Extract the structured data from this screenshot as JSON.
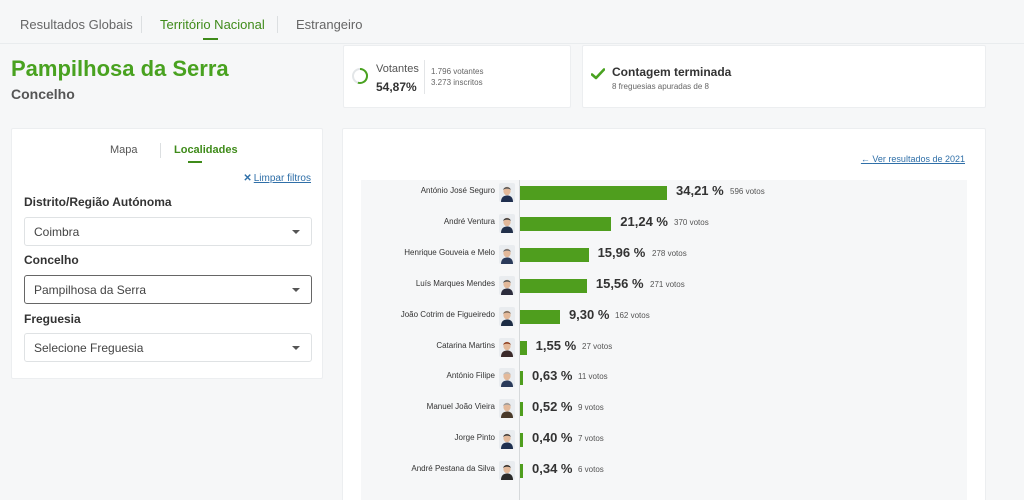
{
  "nav": {
    "tabs": [
      {
        "label": "Resultados Globais"
      },
      {
        "label": "Território Nacional"
      },
      {
        "label": "Estrangeiro"
      }
    ]
  },
  "place": {
    "title": "Pampilhosa da Serra",
    "subtitle": "Concelho"
  },
  "turnout": {
    "label": "Votantes",
    "percent": "54,87%",
    "percent_value": 54.87,
    "voters": "1.796 votantes",
    "registered": "3.273 inscritos"
  },
  "count": {
    "title": "Contagem terminada",
    "subtitle": "8 freguesias apuradas de 8"
  },
  "filters": {
    "tabs": {
      "map": "Mapa",
      "places": "Localidades"
    },
    "clear_label": "Limpar filtros",
    "district_label": "Distrito/Região Autónoma",
    "district_value": "Coimbra",
    "municipality_label": "Concelho",
    "municipality_value": "Pampilhosa da Serra",
    "parish_label": "Freguesia",
    "parish_value": "Selecione Freguesia"
  },
  "results": {
    "back_link": "Ver resultados de 2021"
  },
  "colors": {
    "brand_green": "#49a220",
    "bar_green": "#4f9e1e",
    "link_blue": "#2f6fa8"
  },
  "chart_data": {
    "type": "bar",
    "orientation": "horizontal",
    "categories": [
      "António José Seguro",
      "André Ventura",
      "Henrique Gouveia e Melo",
      "Luís Marques Mendes",
      "João Cotrim de Figueiredo",
      "Catarina Martins",
      "António Filipe",
      "Manuel João Vieira",
      "Jorge Pinto",
      "André Pestana da Silva"
    ],
    "values": [
      34.21,
      21.24,
      15.96,
      15.56,
      9.3,
      1.55,
      0.63,
      0.52,
      0.4,
      0.34
    ],
    "percent_labels": [
      "34,21 %",
      "21,24 %",
      "15,96 %",
      "15,56 %",
      "9,30 %",
      "1,55 %",
      "0,63 %",
      "0,52 %",
      "0,40 %",
      "0,34 %"
    ],
    "vote_labels": [
      "596 votos",
      "370 votos",
      "278 votos",
      "271 votos",
      "162 votos",
      "27 votos",
      "11 votos",
      "9 votos",
      "7 votos",
      "6 votos"
    ],
    "votes": [
      596,
      370,
      278,
      271,
      162,
      27,
      11,
      9,
      7,
      6
    ],
    "xlabel": "",
    "ylabel": "",
    "xlim": [
      0,
      34.21
    ]
  }
}
